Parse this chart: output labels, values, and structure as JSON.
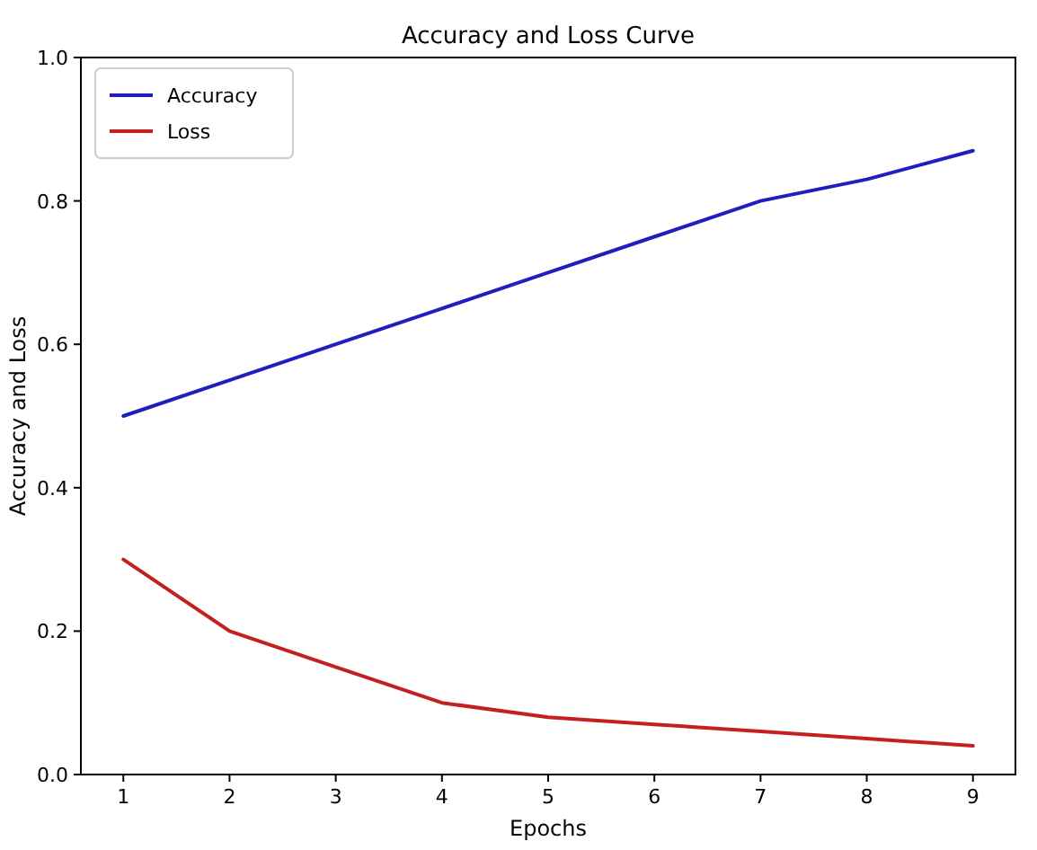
{
  "chart_data": {
    "type": "line",
    "title": "Accuracy and Loss Curve",
    "xlabel": "Epochs",
    "ylabel": "Accuracy and Loss",
    "x": [
      1,
      2,
      3,
      4,
      5,
      6,
      7,
      8,
      9
    ],
    "series": [
      {
        "name": "Accuracy",
        "color": "#1f1fbf",
        "values": [
          0.5,
          0.55,
          0.6,
          0.65,
          0.7,
          0.75,
          0.8,
          0.83,
          0.87
        ]
      },
      {
        "name": "Loss",
        "color": "#c42020",
        "values": [
          0.3,
          0.2,
          0.15,
          0.1,
          0.08,
          0.07,
          0.06,
          0.05,
          0.04
        ]
      }
    ],
    "xlim": [
      0.6,
      9.4
    ],
    "xticks": [
      1,
      2,
      3,
      4,
      5,
      6,
      7,
      8,
      9
    ],
    "ylim": [
      0,
      1
    ],
    "yticks": [
      {
        "value": 0,
        "label": "0.0"
      },
      {
        "value": 0.2,
        "label": "0.2"
      },
      {
        "value": 0.4,
        "label": "0.4"
      },
      {
        "value": 0.6,
        "label": "0.6"
      },
      {
        "value": 0.8,
        "label": "0.8"
      },
      {
        "value": 1,
        "label": "1.0"
      }
    ],
    "legend": "top left",
    "grid": false
  }
}
